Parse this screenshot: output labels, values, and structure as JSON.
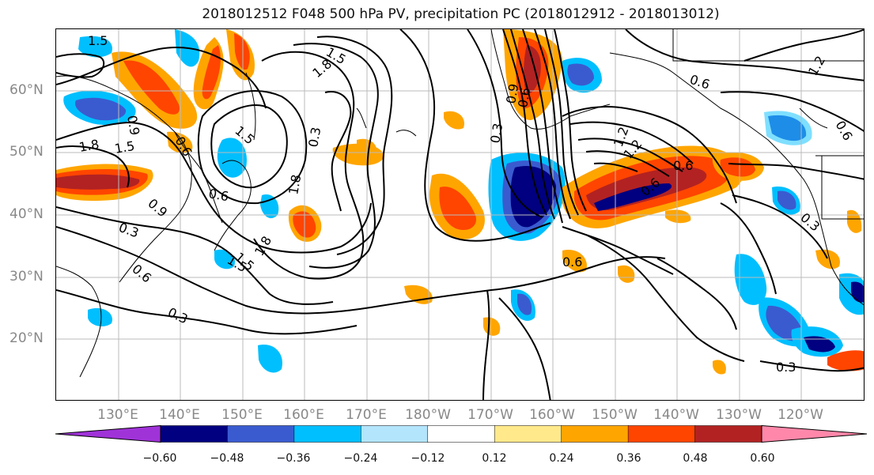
{
  "title": "2018012512 F048 500 hPa PV, precipitation PC (2018012912 - 2018013012)",
  "lat_labels": [
    {
      "label": "60°N"
    },
    {
      "label": "50°N"
    },
    {
      "label": "40°N"
    },
    {
      "label": "30°N"
    },
    {
      "label": "20°N"
    }
  ],
  "lon_labels": [
    {
      "label": "130°E"
    },
    {
      "label": "140°E"
    },
    {
      "label": "150°E"
    },
    {
      "label": "160°E"
    },
    {
      "label": "170°E"
    },
    {
      "label": "180°W"
    },
    {
      "label": "170°W"
    },
    {
      "label": "160°W"
    },
    {
      "label": "150°W"
    },
    {
      "label": "140°W"
    },
    {
      "label": "130°W"
    },
    {
      "label": "120°W"
    }
  ],
  "contour_labels": [
    "1.5",
    "1.5",
    "1.8",
    "0.6",
    "1.2",
    "0.9",
    "1.5",
    "0.3",
    "1.5",
    "1.8",
    "0.6",
    "0.9",
    "0.6",
    "0.3",
    "0.6",
    "1.8",
    "0.9",
    "1.5",
    "1.2",
    "1.2",
    "0.3",
    "0.6",
    "0.6",
    "1.8",
    "1.5",
    "0.6",
    "0.3",
    "0.6",
    "0.3",
    "0.3",
    "0.6"
  ],
  "colorbar": {
    "colors": [
      "#a033d8",
      "#000080",
      "#3a5bd0",
      "#00bfff",
      "#b3e5fc",
      "#ffffff",
      "#ffe98a",
      "#ffa500",
      "#ff4500",
      "#b22222",
      "#ff88aa"
    ],
    "ticks": [
      "−0.60",
      "−0.48",
      "−0.36",
      "−0.24",
      "−0.12",
      "0.12",
      "0.24",
      "0.36",
      "0.48",
      "0.60"
    ]
  }
}
